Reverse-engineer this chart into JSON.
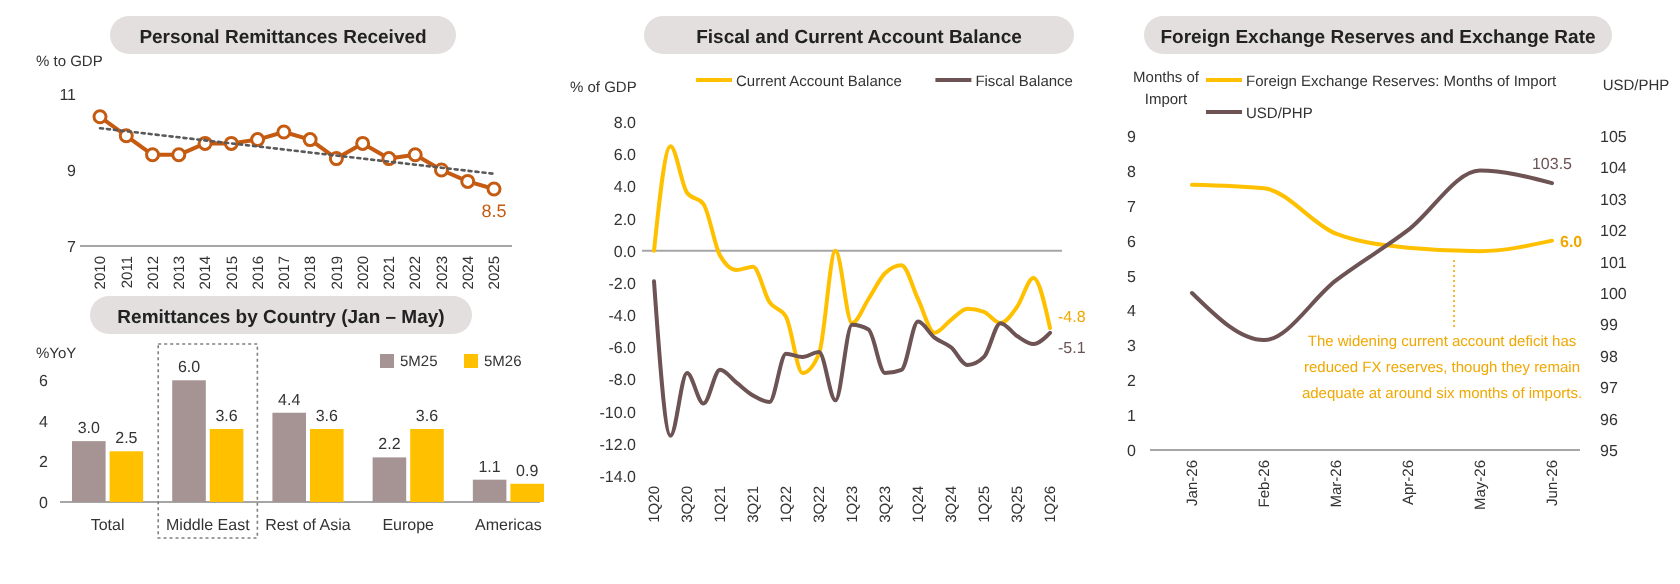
{
  "chart_data": [
    {
      "type": "line",
      "title": "Personal Remittances Received",
      "ylabel": "% to GDP",
      "categories": [
        "2010",
        "2011",
        "2012",
        "2013",
        "2014",
        "2015",
        "2016",
        "2017",
        "2018",
        "2019",
        "2020",
        "2021",
        "2022",
        "2023",
        "2024",
        "2025"
      ],
      "ylim": [
        7,
        11
      ],
      "yticks": [
        7,
        9,
        11
      ],
      "marker": "circle",
      "series": [
        {
          "color": "#c55a11",
          "values": [
            10.4,
            9.9,
            9.4,
            9.4,
            9.7,
            9.7,
            9.8,
            10.0,
            9.8,
            9.3,
            9.7,
            9.3,
            9.4,
            9.0,
            8.7,
            8.5
          ],
          "value_labels": [
            null,
            null,
            null,
            null,
            null,
            null,
            null,
            null,
            null,
            null,
            null,
            null,
            null,
            null,
            null,
            "8.5"
          ]
        },
        {
          "type": "line",
          "color": "#595959",
          "line_style": "dotted",
          "marker": "none",
          "values": [
            10.1,
            10.02,
            9.94,
            9.86,
            9.78,
            9.7,
            9.62,
            9.54,
            9.46,
            9.38,
            9.3,
            9.22,
            9.14,
            9.06,
            8.98,
            8.9
          ]
        }
      ]
    },
    {
      "type": "bar",
      "title": "Remittances by Country (Jan – May)",
      "ylabel": "%YoY",
      "categories": [
        "Total",
        "Middle East",
        "Rest of Asia",
        "Europe",
        "Americas"
      ],
      "ylim": [
        0,
        7
      ],
      "yticks": [
        0,
        2,
        4,
        6
      ],
      "legend": "top right",
      "series": [
        {
          "name": "5M25",
          "color": "#a69494",
          "values": [
            3.0,
            6.0,
            4.4,
            2.2,
            1.1
          ],
          "value_labels": [
            "3.0",
            "6.0",
            "4.4",
            "2.2",
            "1.1"
          ]
        },
        {
          "name": "5M26",
          "color": "#ffc000",
          "values": [
            2.5,
            3.6,
            3.6,
            3.6,
            0.9
          ],
          "value_labels": [
            "2.5",
            "3.6",
            "3.6",
            "3.6",
            "0.9"
          ]
        }
      ]
    },
    {
      "type": "line",
      "title": "Fiscal and Current Account Balance",
      "ylabel": "% of GDP",
      "categories": [
        "1Q20",
        null,
        "3Q20",
        null,
        "1Q21",
        null,
        "3Q21",
        null,
        "1Q22",
        null,
        "3Q22",
        null,
        "1Q23",
        null,
        "3Q23",
        null,
        "1Q24",
        null,
        "3Q24",
        null,
        "1Q25",
        null,
        "3Q25",
        null,
        "1Q26"
      ],
      "ylim": [
        -14,
        8
      ],
      "yticks": [
        {
          "value": -14,
          "label": "-14.0"
        },
        {
          "value": -12,
          "label": "-12.0"
        },
        {
          "value": -10,
          "label": "-10.0"
        },
        {
          "value": -8,
          "label": "-8.0"
        },
        {
          "value": -6,
          "label": "-6.0"
        },
        {
          "value": -4,
          "label": "-4.0"
        },
        {
          "value": -2,
          "label": "-2.0"
        },
        {
          "value": 0,
          "label": "0.0"
        },
        {
          "value": 2,
          "label": "2.0"
        },
        {
          "value": 4,
          "label": "4.0"
        },
        {
          "value": 6,
          "label": "6.0"
        },
        {
          "value": 8,
          "label": "8.0"
        }
      ],
      "legend": "top",
      "series": [
        {
          "name": "Current Account Balance",
          "color": "#ffc000",
          "values": [
            0.0,
            6.5,
            3.6,
            2.9,
            -0.3,
            -1.2,
            -1.0,
            -3.2,
            -4.1,
            -7.6,
            -6.4,
            0.0,
            -4.5,
            -3.0,
            -1.4,
            -0.9,
            -3.0,
            -5.1,
            -4.3,
            -3.6,
            -3.8,
            -4.5,
            -3.5,
            -1.7,
            -4.8
          ],
          "value_labels": [
            null,
            null,
            null,
            null,
            null,
            null,
            null,
            null,
            null,
            null,
            null,
            null,
            null,
            null,
            null,
            null,
            null,
            null,
            null,
            null,
            null,
            null,
            null,
            null,
            "-4.8"
          ]
        },
        {
          "name": "Fiscal Balance",
          "color": "#6d5353",
          "values": [
            -1.9,
            -11.5,
            -7.6,
            -9.5,
            -7.4,
            -8.2,
            -9.0,
            -9.4,
            -6.4,
            -6.6,
            -6.3,
            -9.3,
            -4.6,
            -4.9,
            -7.6,
            -7.4,
            -4.4,
            -5.4,
            -6.0,
            -7.1,
            -6.6,
            -4.5,
            -5.3,
            -5.8,
            -5.1
          ],
          "value_labels": [
            null,
            null,
            null,
            null,
            null,
            null,
            null,
            null,
            null,
            null,
            null,
            null,
            null,
            null,
            null,
            null,
            null,
            null,
            null,
            null,
            null,
            null,
            null,
            null,
            "-5.1"
          ]
        }
      ]
    },
    {
      "type": "line",
      "title": "Foreign Exchange Reserves and Exchange Rate",
      "ylabel": "Months of Import",
      "y2label": "USD/PHP",
      "categories": [
        "Jan-26",
        "Feb-26",
        "Mar-26",
        "Apr-26",
        "May-26",
        "Jun-26"
      ],
      "ylim": [
        0,
        9
      ],
      "yticks": [
        0,
        1,
        2,
        3,
        4,
        5,
        6,
        7,
        8,
        9
      ],
      "y2lim": [
        95,
        105
      ],
      "y2ticks": [
        95,
        96,
        97,
        98,
        99,
        100,
        101,
        102,
        103,
        104,
        105
      ],
      "legend": "top",
      "annotations": [
        "The widening current account deficit has reduced FX reserves, though they remain adequate at around six months of imports."
      ],
      "series": [
        {
          "name": "Foreign Exchange Reserves: Months of Import",
          "color": "#ffc000",
          "values": [
            7.6,
            7.5,
            6.2,
            5.8,
            5.7,
            6.0
          ],
          "value_labels": [
            null,
            null,
            null,
            null,
            null,
            "6.0"
          ]
        },
        {
          "name": "USD/PHP",
          "axis": "y2",
          "color": "#6d5353",
          "values": [
            100.0,
            98.5,
            100.4,
            102.0,
            103.9,
            103.5
          ],
          "value_labels": [
            null,
            null,
            null,
            null,
            null,
            "103.5"
          ]
        }
      ]
    }
  ]
}
